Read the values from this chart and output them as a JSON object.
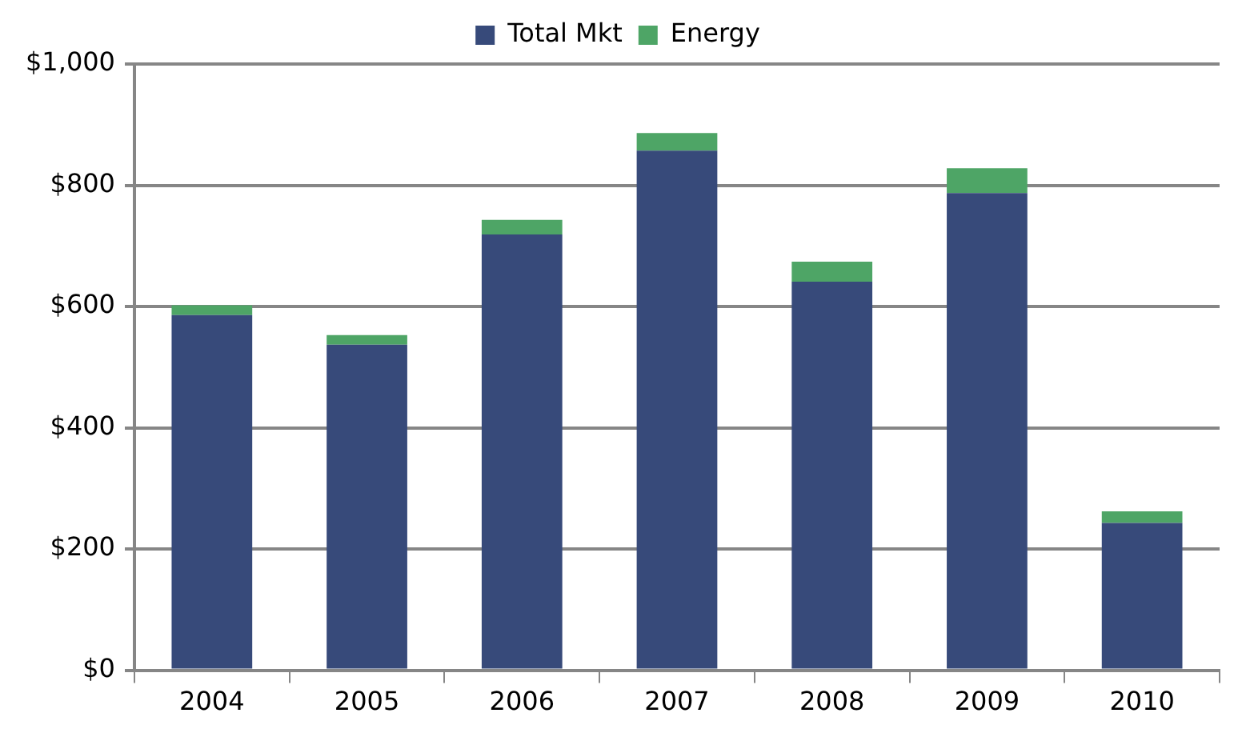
{
  "chart_data": {
    "type": "bar",
    "stacked": true,
    "categories": [
      "2004",
      "2005",
      "2006",
      "2007",
      "2008",
      "2009",
      "2010"
    ],
    "series": [
      {
        "name": "Total Mkt",
        "color": "#374a7a",
        "values": [
          586,
          537,
          719,
          857,
          641,
          787,
          243
        ]
      },
      {
        "name": "Energy",
        "color": "#4ea566",
        "values": [
          16,
          16,
          24,
          29,
          33,
          41,
          19
        ]
      }
    ],
    "ylim": [
      0,
      1000
    ],
    "yticks": [
      {
        "value": 0,
        "label": "$0"
      },
      {
        "value": 200,
        "label": "$200"
      },
      {
        "value": 400,
        "label": "$400"
      },
      {
        "value": 600,
        "label": "$600"
      },
      {
        "value": 800,
        "label": "$800"
      },
      {
        "value": 1000,
        "label": "$1,000"
      }
    ],
    "grid": "y",
    "legend": "top"
  }
}
